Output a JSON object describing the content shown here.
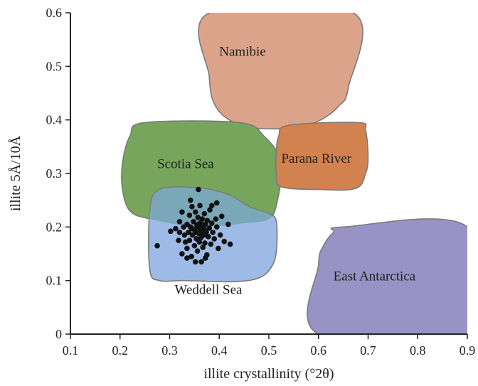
{
  "chart_data": {
    "type": "scatter",
    "title": "",
    "xlabel": "illite crystallinity (°2θ)",
    "ylabel": "illite 5Å/10Å",
    "xlim": [
      0.1,
      0.9
    ],
    "ylim": [
      0,
      0.6
    ],
    "xticks": [
      "0.1",
      "0.2",
      "0.3",
      "0.4",
      "0.5",
      "0.6",
      "0.7",
      "0.8",
      "0.9"
    ],
    "yticks": [
      "0",
      "0.1",
      "0.2",
      "0.3",
      "0.4",
      "0.5",
      "0.6"
    ],
    "grid": false,
    "regions": [
      {
        "name": "Namibie",
        "color": "#dba48a",
        "label_at": [
          0.4,
          0.52
        ],
        "polygon": [
          [
            0.38,
            0.6
          ],
          [
            0.67,
            0.6
          ],
          [
            0.66,
            0.46
          ],
          [
            0.64,
            0.425
          ],
          [
            0.6,
            0.398
          ],
          [
            0.55,
            0.385
          ],
          [
            0.47,
            0.385
          ],
          [
            0.42,
            0.4
          ],
          [
            0.39,
            0.43
          ],
          [
            0.38,
            0.48
          ]
        ]
      },
      {
        "name": "Scotia Sea",
        "color": "#77a55c",
        "label_at": [
          0.275,
          0.31
        ],
        "polygon": [
          [
            0.25,
            0.395
          ],
          [
            0.44,
            0.395
          ],
          [
            0.49,
            0.37
          ],
          [
            0.525,
            0.32
          ],
          [
            0.515,
            0.24
          ],
          [
            0.498,
            0.214
          ],
          [
            0.46,
            0.208
          ],
          [
            0.36,
            0.2
          ],
          [
            0.26,
            0.215
          ],
          [
            0.22,
            0.23
          ],
          [
            0.205,
            0.27
          ],
          [
            0.205,
            0.32
          ],
          [
            0.22,
            0.37
          ]
        ]
      },
      {
        "name": "Parana River",
        "color": "#d2824f",
        "label_at": [
          0.525,
          0.32
        ],
        "polygon": [
          [
            0.54,
            0.39
          ],
          [
            0.68,
            0.395
          ],
          [
            0.695,
            0.38
          ],
          [
            0.7,
            0.33
          ],
          [
            0.695,
            0.3
          ],
          [
            0.675,
            0.272
          ],
          [
            0.6,
            0.27
          ],
          [
            0.525,
            0.275
          ],
          [
            0.515,
            0.3
          ],
          [
            0.515,
            0.34
          ],
          [
            0.52,
            0.37
          ]
        ]
      },
      {
        "name": "Weddell Sea",
        "color": "#9dbbe6",
        "label_at": [
          0.31,
          0.075
        ],
        "polygon": [
          [
            0.28,
            0.27
          ],
          [
            0.36,
            0.273
          ],
          [
            0.42,
            0.26
          ],
          [
            0.46,
            0.238
          ],
          [
            0.5,
            0.225
          ],
          [
            0.515,
            0.21
          ],
          [
            0.515,
            0.155
          ],
          [
            0.505,
            0.125
          ],
          [
            0.48,
            0.105
          ],
          [
            0.43,
            0.098
          ],
          [
            0.33,
            0.1
          ],
          [
            0.28,
            0.1
          ],
          [
            0.26,
            0.12
          ],
          [
            0.26,
            0.23
          ]
        ]
      },
      {
        "name": "East Antarctica",
        "color": "#9893c4",
        "label_at": [
          0.63,
          0.1
        ],
        "polygon": [
          [
            0.65,
            0.2
          ],
          [
            0.9,
            0.2
          ],
          [
            0.9,
            0
          ],
          [
            0.6,
            0
          ],
          [
            0.6,
            0.13
          ],
          [
            0.61,
            0.165
          ],
          [
            0.63,
            0.19
          ]
        ]
      }
    ],
    "overlap_color": "#7aa8b8",
    "series": [
      {
        "marker": "filled-circle",
        "color": "#111111",
        "points": [
          [
            0.275,
            0.165
          ],
          [
            0.358,
            0.27
          ],
          [
            0.302,
            0.192
          ],
          [
            0.312,
            0.197
          ],
          [
            0.318,
            0.175
          ],
          [
            0.32,
            0.21
          ],
          [
            0.325,
            0.15
          ],
          [
            0.325,
            0.228
          ],
          [
            0.33,
            0.185
          ],
          [
            0.332,
            0.172
          ],
          [
            0.335,
            0.205
          ],
          [
            0.335,
            0.16
          ],
          [
            0.338,
            0.19
          ],
          [
            0.34,
            0.222
          ],
          [
            0.34,
            0.175
          ],
          [
            0.342,
            0.2
          ],
          [
            0.344,
            0.145
          ],
          [
            0.345,
            0.238
          ],
          [
            0.346,
            0.185
          ],
          [
            0.348,
            0.21
          ],
          [
            0.35,
            0.195
          ],
          [
            0.35,
            0.165
          ],
          [
            0.352,
            0.228
          ],
          [
            0.354,
            0.178
          ],
          [
            0.355,
            0.203
          ],
          [
            0.356,
            0.155
          ],
          [
            0.357,
            0.218
          ],
          [
            0.358,
            0.188
          ],
          [
            0.36,
            0.198
          ],
          [
            0.36,
            0.172
          ],
          [
            0.361,
            0.24
          ],
          [
            0.362,
            0.208
          ],
          [
            0.363,
            0.18
          ],
          [
            0.364,
            0.135
          ],
          [
            0.365,
            0.193
          ],
          [
            0.366,
            0.215
          ],
          [
            0.367,
            0.162
          ],
          [
            0.368,
            0.2
          ],
          [
            0.369,
            0.185
          ],
          [
            0.37,
            0.225
          ],
          [
            0.371,
            0.17
          ],
          [
            0.372,
            0.205
          ],
          [
            0.374,
            0.19
          ],
          [
            0.375,
            0.148
          ],
          [
            0.376,
            0.212
          ],
          [
            0.378,
            0.182
          ],
          [
            0.38,
            0.198
          ],
          [
            0.381,
            0.232
          ],
          [
            0.383,
            0.168
          ],
          [
            0.385,
            0.207
          ],
          [
            0.387,
            0.19
          ],
          [
            0.39,
            0.178
          ],
          [
            0.393,
            0.215
          ],
          [
            0.395,
            0.2
          ],
          [
            0.398,
            0.16
          ],
          [
            0.402,
            0.185
          ],
          [
            0.405,
            0.22
          ],
          [
            0.41,
            0.173
          ],
          [
            0.418,
            0.205
          ],
          [
            0.422,
            0.168
          ],
          [
            0.395,
            0.245
          ],
          [
            0.335,
            0.142
          ],
          [
            0.352,
            0.135
          ],
          [
            0.342,
            0.25
          ],
          [
            0.372,
            0.142
          ],
          [
            0.385,
            0.24
          ],
          [
            0.32,
            0.19
          ],
          [
            0.328,
            0.2
          ],
          [
            0.345,
            0.197
          ],
          [
            0.358,
            0.205
          ],
          [
            0.362,
            0.195
          ],
          [
            0.366,
            0.188
          ],
          [
            0.37,
            0.195
          ],
          [
            0.353,
            0.19
          ],
          [
            0.364,
            0.202
          ]
        ]
      }
    ]
  }
}
